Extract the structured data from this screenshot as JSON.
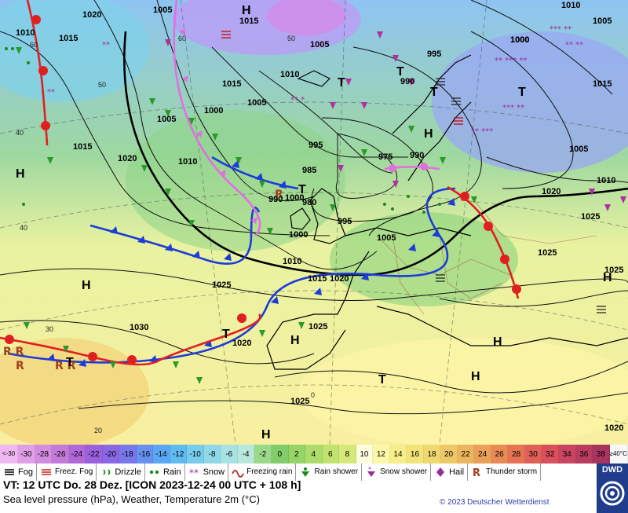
{
  "map": {
    "isobar_labels": [
      "1010",
      "1015",
      "1020",
      "1005",
      "1015",
      "1005",
      "1010",
      "1015",
      "1005",
      "1000",
      "1010",
      "1005",
      "1000",
      "995",
      "990",
      "985",
      "980",
      "975",
      "990",
      "995",
      "1000",
      "1005",
      "1010",
      "1015",
      "1020",
      "1025",
      "1020",
      "1015",
      "1010",
      "1005",
      "1000",
      "995",
      "990",
      "1000",
      "1005",
      "1010",
      "1015",
      "1020",
      "1025",
      "1030",
      "1025",
      "1025",
      "1020",
      "1025",
      "1020",
      "1025"
    ],
    "pressure_centers": [
      "H",
      "H",
      "H",
      "H",
      "H",
      "H",
      "H",
      "H",
      "H",
      "T",
      "T",
      "T",
      "T",
      "T",
      "T",
      "T",
      "T"
    ],
    "temp_labels": [
      "60",
      "50",
      "40",
      "40",
      "30",
      "20",
      "0",
      "60",
      "50"
    ]
  },
  "scale": {
    "endcap_left": [
      "<",
      "-30"
    ],
    "values": [
      "-30",
      "-28",
      "-26",
      "-24",
      "-22",
      "-20",
      "-18",
      "-16",
      "-14",
      "-12",
      "-10",
      "-8",
      "-6",
      "-4",
      "-2",
      "0",
      "2",
      "4",
      "6",
      "8",
      "10",
      "12",
      "14",
      "16",
      "18",
      "20",
      "22",
      "24",
      "26",
      "28",
      "30",
      "32",
      "34",
      "36",
      "38"
    ],
    "colors": [
      "#e0a0e8",
      "#d48ce0",
      "#c47ad8",
      "#b068d8",
      "#9c60dc",
      "#8868e4",
      "#7878ec",
      "#6890f0",
      "#5aa8f4",
      "#60bcf0",
      "#78ccec",
      "#90d8e8",
      "#a8e2e4",
      "#b8e8dc",
      "#9ad88a",
      "#82cc6a",
      "#96d466",
      "#aedc6a",
      "#c2e270",
      "#d6e87a",
      "#fffde0",
      "#fbf6a8",
      "#f6ee8a",
      "#f2e478",
      "#f0d870",
      "#eec868",
      "#ecb660",
      "#eaa058",
      "#e88a54",
      "#e47454",
      "#e06058",
      "#d8505c",
      "#c84460",
      "#b83c60",
      "#a83460"
    ],
    "endcap_right": [
      "≥40",
      "°C"
    ]
  },
  "legend": [
    {
      "icon": "fog-icon",
      "label": "Fog"
    },
    {
      "icon": "freezing-fog-icon",
      "label": "Freez. Fog"
    },
    {
      "icon": "drizzle-icon",
      "label": "Drizzle"
    },
    {
      "icon": "rain-icon",
      "label": "Rain"
    },
    {
      "icon": "snow-icon",
      "label": "Snow"
    },
    {
      "icon": "freezing-rain-icon",
      "label": "Freezing rain"
    },
    {
      "icon": "rain-shower-icon",
      "label": "Rain shower"
    },
    {
      "icon": "snow-shower-icon",
      "label": "Snow shower"
    },
    {
      "icon": "hail-icon",
      "label": "Hail"
    },
    {
      "icon": "thunderstorm-icon",
      "label": "Thunder storm"
    }
  ],
  "info": {
    "valid_time": "VT: 12 UTC Do.   28 Dez. [ICON 2023-12-24  00 UTC + 108 h]",
    "description": "Sea level pressure (hPa), Weather, Temperature 2m (°C)"
  },
  "copyright": "© 2023 Deutscher Wetterdienst",
  "logo": {
    "text": "DWD"
  }
}
